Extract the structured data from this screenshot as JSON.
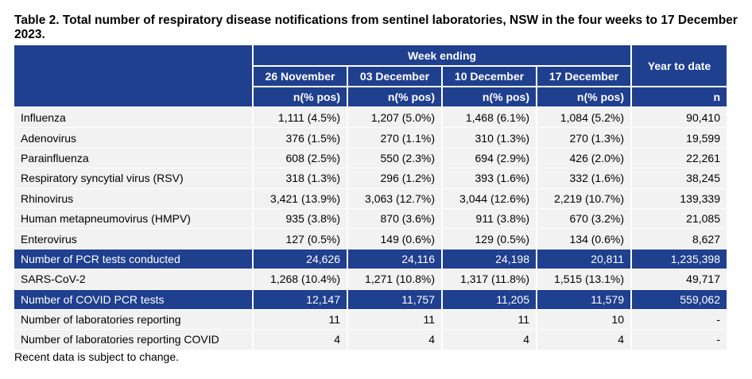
{
  "title": "Table 2. Total number of respiratory disease notifications from sentinel laboratories, NSW in the four weeks to 17 December 2023.",
  "header": {
    "week_ending": "Week ending",
    "year_to_date": "Year to date",
    "weeks": [
      "26 November",
      "03 December",
      "10 December",
      "17 December"
    ],
    "units": [
      "n(% pos)",
      "n(% pos)",
      "n(% pos)",
      "n(% pos)"
    ],
    "ytd_unit": "n"
  },
  "rows": [
    {
      "label": "Influenza",
      "values": [
        "1,111 (4.5%)",
        "1,207 (5.0%)",
        "1,468 (6.1%)",
        "1,084 (5.2%)"
      ],
      "ytd": "90,410"
    },
    {
      "label": "Adenovirus",
      "values": [
        "376 (1.5%)",
        "270 (1.1%)",
        "310 (1.3%)",
        "270 (1.3%)"
      ],
      "ytd": "19,599"
    },
    {
      "label": "Parainfluenza",
      "values": [
        "608 (2.5%)",
        "550 (2.3%)",
        "694 (2.9%)",
        "426 (2.0%)"
      ],
      "ytd": "22,261"
    },
    {
      "label": "Respiratory syncytial virus (RSV)",
      "values": [
        "318 (1.3%)",
        "296 (1.2%)",
        "393 (1.6%)",
        "332 (1.6%)"
      ],
      "ytd": "38,245"
    },
    {
      "label": "Rhinovirus",
      "values": [
        "3,421 (13.9%)",
        "3,063 (12.7%)",
        "3,044 (12.6%)",
        "2,219 (10.7%)"
      ],
      "ytd": "139,339"
    },
    {
      "label": "Human metapneumovirus (HMPV)",
      "values": [
        "935 (3.8%)",
        "870 (3.6%)",
        "911 (3.8%)",
        "670 (3.2%)"
      ],
      "ytd": "21,085"
    },
    {
      "label": "Enterovirus",
      "values": [
        "127 (0.5%)",
        "149 (0.6%)",
        "129 (0.5%)",
        "134 (0.6%)"
      ],
      "ytd": "8,627"
    },
    {
      "label": "Number of PCR tests conducted",
      "values": [
        "24,626",
        "24,116",
        "24,198",
        "20,811"
      ],
      "ytd": "1,235,398"
    },
    {
      "label": "SARS-CoV-2",
      "values": [
        "1,268 (10.4%)",
        "1,271 (10.8%)",
        "1,317 (11.8%)",
        "1,515 (13.1%)"
      ],
      "ytd": "49,717"
    },
    {
      "label": "Number of COVID PCR tests",
      "values": [
        "12,147",
        "11,757",
        "11,205",
        "11,579"
      ],
      "ytd": "559,062"
    },
    {
      "label": "Number of laboratories reporting",
      "values": [
        "11",
        "11",
        "11",
        "10"
      ],
      "ytd": "-"
    },
    {
      "label": "Number of laboratories reporting COVID",
      "values": [
        "4",
        "4",
        "4",
        "4"
      ],
      "ytd": "-"
    }
  ],
  "note": "Recent data is subject to change.",
  "colors": {
    "header_bg": "#1f3f8f",
    "row_bg": "#f2f2f2",
    "header_text": "#ffffff"
  }
}
